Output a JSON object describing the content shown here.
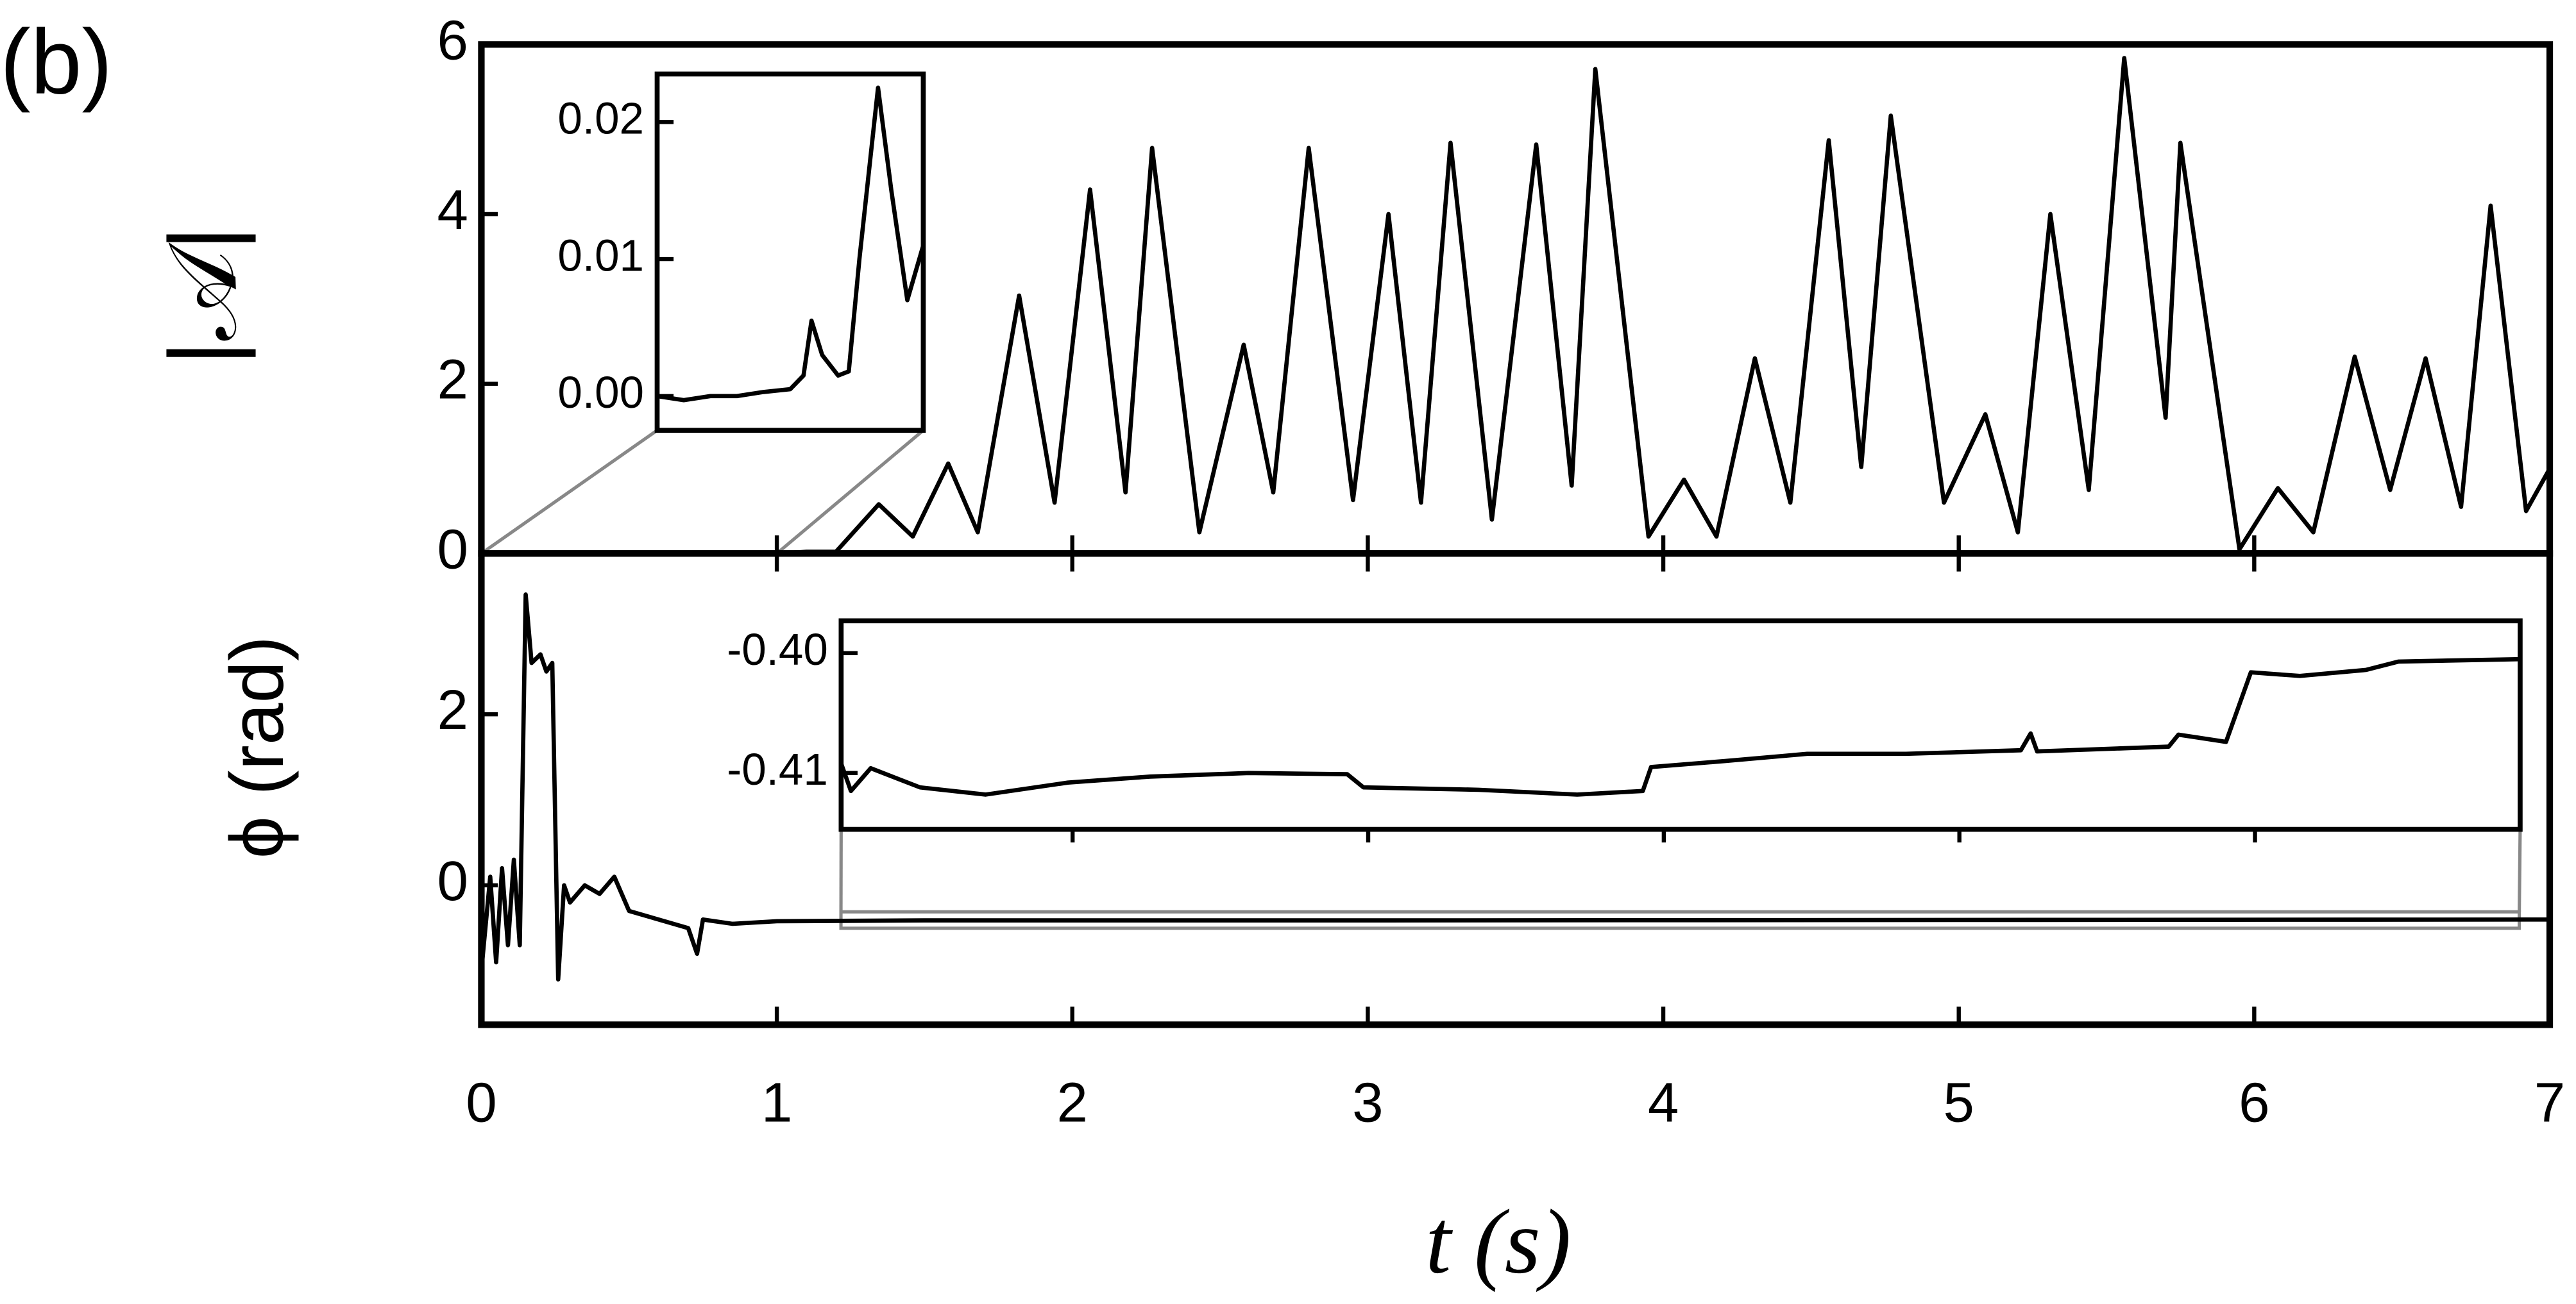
{
  "chart_data": [
    {
      "type": "line",
      "panel_label": "(b)",
      "ylabel": "|𝒜|",
      "x": [
        0,
        1.0,
        1.1,
        1.2,
        1.345,
        1.46,
        1.58,
        1.68,
        1.82,
        1.94,
        2.06,
        2.18,
        2.27,
        2.43,
        2.58,
        2.68,
        2.8,
        2.95,
        3.07,
        3.18,
        3.28,
        3.42,
        3.57,
        3.69,
        3.77,
        3.95,
        4.07,
        4.18,
        4.31,
        4.43,
        4.56,
        4.67,
        4.77,
        4.95,
        5.09,
        5.2,
        5.31,
        5.44,
        5.56,
        5.7,
        5.75,
        5.95,
        6.08,
        6.2,
        6.34,
        6.46,
        6.58,
        6.7,
        6.8,
        6.92,
        7.0
      ],
      "values": [
        0,
        0,
        0.02,
        0.02,
        0.58,
        0.2,
        1.06,
        0.25,
        3.04,
        0.6,
        4.29,
        0.72,
        4.78,
        0.25,
        2.46,
        0.72,
        4.78,
        0.63,
        4.0,
        0.6,
        4.84,
        0.4,
        4.82,
        0.8,
        5.71,
        0.2,
        0.87,
        0.2,
        2.3,
        0.6,
        4.87,
        1.02,
        5.16,
        0.6,
        1.64,
        0.25,
        4.0,
        0.75,
        5.84,
        1.6,
        4.84,
        0.05,
        0.77,
        0.25,
        2.32,
        0.75,
        2.3,
        0.55,
        4.1,
        0.5,
        1.0
      ],
      "color": "#000000",
      "xlim": [
        0,
        7
      ],
      "ylim": [
        0,
        6
      ],
      "yticks": [
        0,
        2,
        4,
        6
      ]
    },
    {
      "type": "line",
      "ylabel": "ϕ (rad)",
      "xlabel": "t (s)",
      "x": [
        0,
        0.03,
        0.05,
        0.07,
        0.09,
        0.11,
        0.13,
        0.15,
        0.17,
        0.2,
        0.22,
        0.24,
        0.26,
        0.28,
        0.3,
        0.35,
        0.4,
        0.45,
        0.5,
        0.6,
        0.7,
        0.73,
        0.75,
        0.85,
        1.0,
        1.5,
        3,
        5,
        7
      ],
      "values": [
        -1.0,
        0.1,
        -0.9,
        0.2,
        -0.7,
        0.3,
        -0.7,
        3.4,
        2.6,
        2.7,
        2.5,
        2.6,
        -1.1,
        0.0,
        -0.2,
        0.0,
        -0.1,
        0.1,
        -0.3,
        -0.4,
        -0.5,
        -0.8,
        -0.4,
        -0.45,
        -0.42,
        -0.41,
        -0.41,
        -0.405,
        -0.4
      ],
      "color": "#000000",
      "xlim": [
        0,
        7
      ],
      "ylim": [
        -1.63,
        3.88
      ],
      "xticks": [
        0,
        1,
        2,
        3,
        4,
        5,
        6,
        7
      ],
      "yticks": [
        0,
        2
      ]
    },
    {
      "type": "line",
      "x": [
        0,
        0.1,
        0.2,
        0.3,
        0.4,
        0.5,
        0.55,
        0.58,
        0.62,
        0.68,
        0.72,
        0.76,
        0.83,
        0.88,
        0.94,
        1.0
      ],
      "values": [
        0,
        -0.0003,
        0,
        0,
        0.0003,
        0.0005,
        0.0015,
        0.0055,
        0.003,
        0.0015,
        0.0018,
        0.01,
        0.0225,
        0.015,
        0.007,
        0.011
      ],
      "color": "#000000",
      "xlim": [
        0,
        1
      ],
      "ylim": [
        -0.0025,
        0.0235
      ],
      "yticks": [
        {
          "value": 0,
          "label": "0.00"
        },
        0.01,
        0.02
      ]
    },
    {
      "type": "line",
      "x": [
        1.217,
        1.25,
        1.317,
        1.484,
        1.706,
        1.984,
        2.262,
        2.595,
        2.929,
        2.984,
        3.373,
        3.707,
        3.929,
        3.957,
        4.207,
        4.485,
        4.819,
        5.208,
        5.241,
        5.263,
        5.708,
        5.741,
        5.902,
        5.986,
        6.152,
        6.375,
        6.486,
        6.897
      ],
      "values": [
        -0.4092,
        -0.4115,
        -0.4096,
        -0.4112,
        -0.4118,
        -0.4108,
        -0.4103,
        -0.41,
        -0.4101,
        -0.4112,
        -0.4114,
        -0.4118,
        -0.4115,
        -0.4095,
        -0.409,
        -0.4084,
        -0.4084,
        -0.4081,
        -0.4067,
        -0.4082,
        -0.4078,
        -0.4068,
        -0.4074,
        -0.4016,
        -0.4019,
        -0.4014,
        -0.4007,
        -0.4005
      ],
      "color": "#000000",
      "xlim": [
        1.217,
        6.897
      ],
      "ylim": [
        -0.4147,
        -0.3973
      ],
      "yticks": [
        {
          "value": -0.4,
          "label": "-0.40"
        },
        -0.41
      ]
    }
  ]
}
